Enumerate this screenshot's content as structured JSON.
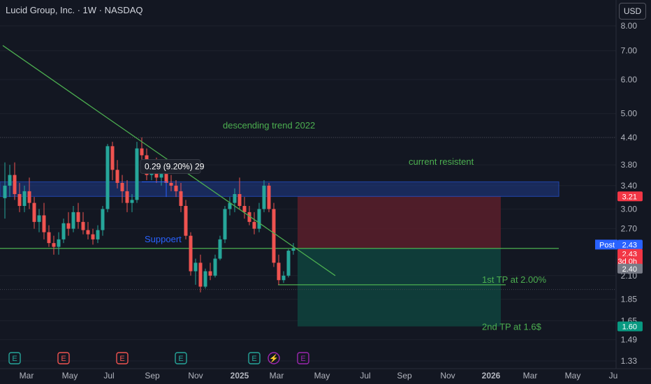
{
  "header": {
    "title": "Lucid Group, Inc. · 1W · NASDAQ",
    "currency": "USD"
  },
  "colors": {
    "background": "#131722",
    "up": "#26a69a",
    "down": "#ef5350",
    "trend": "#4caf50",
    "resistance_zone": "#1e3a8a",
    "resistance_line": "#2962ff",
    "stop_zone": "#5b1f2a",
    "target_zone": "#10403c",
    "text": "#b2b5be",
    "annotation_green": "#4caf50",
    "annotation_blue": "#2962ff"
  },
  "chart_data": {
    "type": "candlestick",
    "title": "Lucid Group, Inc. · 1W · NASDAQ",
    "price_scale": "log",
    "ylim": [
      1.3,
      8.5
    ],
    "y_ticks": [
      "8.00",
      "7.00",
      "6.00",
      "5.00",
      "4.40",
      "3.80",
      "3.40",
      "3.00",
      "2.70",
      "2.10",
      "1.85",
      "1.65",
      "1.49",
      "1.33"
    ],
    "x_ticks": [
      "Mar",
      "May",
      "Jul",
      "Sep",
      "Nov",
      "2025",
      "Mar",
      "May",
      "Jul",
      "Sep",
      "Nov",
      "2026",
      "Mar",
      "May",
      "Ju"
    ],
    "candles": [
      {
        "o": 3.18,
        "h": 3.85,
        "l": 2.85,
        "c": 3.4
      },
      {
        "o": 3.4,
        "h": 3.8,
        "l": 3.2,
        "c": 3.6
      },
      {
        "o": 3.6,
        "h": 3.85,
        "l": 3.15,
        "c": 3.25
      },
      {
        "o": 3.25,
        "h": 3.45,
        "l": 2.95,
        "c": 3.05
      },
      {
        "o": 3.05,
        "h": 3.4,
        "l": 2.95,
        "c": 3.3
      },
      {
        "o": 3.3,
        "h": 3.55,
        "l": 3.0,
        "c": 3.1
      },
      {
        "o": 3.1,
        "h": 3.2,
        "l": 2.7,
        "c": 2.8
      },
      {
        "o": 2.8,
        "h": 3.0,
        "l": 2.65,
        "c": 2.9
      },
      {
        "o": 2.9,
        "h": 3.1,
        "l": 2.55,
        "c": 2.65
      },
      {
        "o": 2.65,
        "h": 2.75,
        "l": 2.45,
        "c": 2.5
      },
      {
        "o": 2.5,
        "h": 2.6,
        "l": 2.35,
        "c": 2.45
      },
      {
        "o": 2.45,
        "h": 2.65,
        "l": 2.35,
        "c": 2.55
      },
      {
        "o": 2.55,
        "h": 2.85,
        "l": 2.5,
        "c": 2.78
      },
      {
        "o": 2.78,
        "h": 2.95,
        "l": 2.6,
        "c": 2.7
      },
      {
        "o": 2.7,
        "h": 3.05,
        "l": 2.65,
        "c": 2.95
      },
      {
        "o": 2.95,
        "h": 3.1,
        "l": 2.7,
        "c": 2.8
      },
      {
        "o": 2.8,
        "h": 2.95,
        "l": 2.62,
        "c": 2.68
      },
      {
        "o": 2.68,
        "h": 2.8,
        "l": 2.55,
        "c": 2.62
      },
      {
        "o": 2.62,
        "h": 2.7,
        "l": 2.48,
        "c": 2.55
      },
      {
        "o": 2.55,
        "h": 2.75,
        "l": 2.5,
        "c": 2.68
      },
      {
        "o": 2.68,
        "h": 3.05,
        "l": 2.6,
        "c": 3.0
      },
      {
        "o": 3.0,
        "h": 4.25,
        "l": 2.95,
        "c": 4.2
      },
      {
        "o": 4.2,
        "h": 4.3,
        "l": 3.5,
        "c": 3.7
      },
      {
        "o": 3.7,
        "h": 3.9,
        "l": 3.35,
        "c": 3.45
      },
      {
        "o": 3.45,
        "h": 3.6,
        "l": 3.1,
        "c": 3.3
      },
      {
        "o": 3.3,
        "h": 3.5,
        "l": 2.95,
        "c": 3.1
      },
      {
        "o": 3.1,
        "h": 3.25,
        "l": 2.95,
        "c": 3.15
      },
      {
        "o": 3.15,
        "h": 4.3,
        "l": 3.1,
        "c": 4.15
      },
      {
        "o": 4.15,
        "h": 4.4,
        "l": 3.8,
        "c": 4.0
      },
      {
        "o": 4.0,
        "h": 4.15,
        "l": 3.5,
        "c": 3.6
      },
      {
        "o": 3.6,
        "h": 3.9,
        "l": 3.5,
        "c": 3.85
      },
      {
        "o": 3.85,
        "h": 3.95,
        "l": 3.45,
        "c": 3.55
      },
      {
        "o": 3.55,
        "h": 3.75,
        "l": 3.4,
        "c": 3.62
      },
      {
        "o": 3.62,
        "h": 3.7,
        "l": 3.35,
        "c": 3.45
      },
      {
        "o": 3.45,
        "h": 3.6,
        "l": 3.3,
        "c": 3.4
      },
      {
        "o": 3.4,
        "h": 3.5,
        "l": 3.2,
        "c": 3.3
      },
      {
        "o": 3.3,
        "h": 3.45,
        "l": 2.95,
        "c": 3.05
      },
      {
        "o": 3.05,
        "h": 3.15,
        "l": 2.55,
        "c": 2.6
      },
      {
        "o": 2.6,
        "h": 2.65,
        "l": 2.1,
        "c": 2.15
      },
      {
        "o": 2.15,
        "h": 2.3,
        "l": 2.0,
        "c": 2.25
      },
      {
        "o": 2.25,
        "h": 2.35,
        "l": 1.92,
        "c": 1.98
      },
      {
        "o": 1.98,
        "h": 2.18,
        "l": 1.96,
        "c": 2.15
      },
      {
        "o": 2.15,
        "h": 2.25,
        "l": 2.05,
        "c": 2.1
      },
      {
        "o": 2.1,
        "h": 2.35,
        "l": 2.08,
        "c": 2.3
      },
      {
        "o": 2.3,
        "h": 2.6,
        "l": 2.28,
        "c": 2.55
      },
      {
        "o": 2.55,
        "h": 3.05,
        "l": 2.5,
        "c": 3.0
      },
      {
        "o": 3.0,
        "h": 3.2,
        "l": 2.9,
        "c": 3.1
      },
      {
        "o": 3.1,
        "h": 3.35,
        "l": 2.95,
        "c": 3.25
      },
      {
        "o": 3.25,
        "h": 3.55,
        "l": 3.0,
        "c": 3.05
      },
      {
        "o": 3.05,
        "h": 3.2,
        "l": 2.85,
        "c": 2.95
      },
      {
        "o": 2.95,
        "h": 3.05,
        "l": 2.75,
        "c": 2.8
      },
      {
        "o": 2.8,
        "h": 2.95,
        "l": 2.62,
        "c": 2.7
      },
      {
        "o": 2.7,
        "h": 3.1,
        "l": 2.65,
        "c": 3.0
      },
      {
        "o": 3.0,
        "h": 3.5,
        "l": 2.95,
        "c": 3.4
      },
      {
        "o": 3.4,
        "h": 3.45,
        "l": 2.95,
        "c": 3.0
      },
      {
        "o": 3.0,
        "h": 3.1,
        "l": 2.2,
        "c": 2.25
      },
      {
        "o": 2.25,
        "h": 2.35,
        "l": 2.0,
        "c": 2.05
      },
      {
        "o": 2.05,
        "h": 2.15,
        "l": 2.02,
        "c": 2.1
      },
      {
        "o": 2.1,
        "h": 2.42,
        "l": 2.08,
        "c": 2.4
      },
      {
        "o": 2.4,
        "h": 2.5,
        "l": 2.35,
        "c": 2.43
      }
    ],
    "trendline": {
      "from": {
        "index": 0,
        "price": 7.2
      },
      "to": {
        "index": 68,
        "price": 2.1
      }
    },
    "resistance_zone": [
      3.21,
      3.47
    ],
    "support_line": 2.43,
    "first_tp_line": 2.0,
    "position": {
      "entry": 2.43,
      "stop": 3.21,
      "target": 1.6
    },
    "measure": {
      "label": "0.29 (9.20%) 29",
      "from_index": 28,
      "to_index": 33,
      "price": 3.47
    },
    "annotations": [
      {
        "text": "descending trend 2022",
        "index": 45,
        "price": 4.62,
        "color": "#4caf50"
      },
      {
        "text": "current resistent",
        "index": 83,
        "price": 3.8,
        "color": "#4caf50"
      },
      {
        "text": "Suppoert",
        "index": 29,
        "price": 2.51,
        "color": "#2962ff"
      },
      {
        "text": "1st TP at 2.00%",
        "index": 98,
        "price": 2.02,
        "color": "#4caf50"
      },
      {
        "text": "2nd TP at 1.6$",
        "index": 98,
        "price": 1.57,
        "color": "#4caf50"
      }
    ],
    "price_labels": [
      {
        "text": "3.21",
        "price": 3.21,
        "bg": "#f23645",
        "fg": "#ffffff"
      },
      {
        "text": "2.43",
        "price": 2.48,
        "bg": "#2962ff",
        "fg": "#ffffff",
        "prefix": "Post"
      },
      {
        "text": "2.43",
        "price": 2.36,
        "bg": "#f23645",
        "fg": "#ffffff"
      },
      {
        "text": "3d 0h",
        "price": 2.27,
        "bg": "#f23645",
        "fg": "#ffffff"
      },
      {
        "text": "2.40",
        "price": 2.18,
        "bg": "#787b86",
        "fg": "#ffffff"
      },
      {
        "text": "1.60",
        "price": 1.6,
        "bg": "#089981",
        "fg": "#ffffff"
      }
    ],
    "events": [
      {
        "type": "E",
        "index": 2,
        "color": "#26a69a"
      },
      {
        "type": "E",
        "index": 12,
        "color": "#ef5350"
      },
      {
        "type": "E",
        "index": 24,
        "color": "#ef5350"
      },
      {
        "type": "E",
        "index": 36,
        "color": "#26a69a"
      },
      {
        "type": "E",
        "index": 51,
        "color": "#26a69a"
      },
      {
        "type": "⚡",
        "index": 55,
        "color": "#9c27b0"
      },
      {
        "type": "E",
        "index": 61,
        "color": "#9c27b0"
      }
    ]
  }
}
